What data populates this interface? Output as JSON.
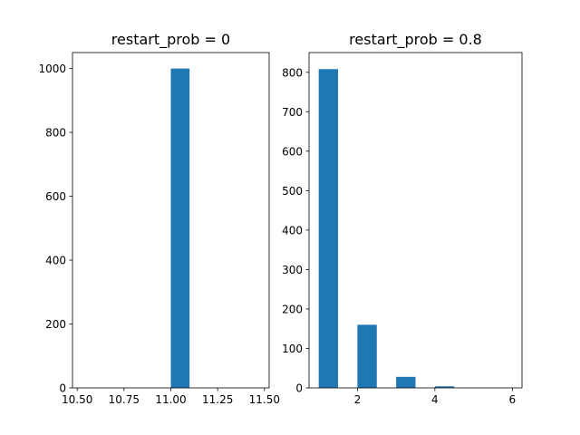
{
  "chart_data": [
    {
      "type": "bar",
      "title": "restart_prob = 0",
      "xlim": [
        10.475,
        11.525
      ],
      "ylim": [
        0,
        1050
      ],
      "xticks": [
        10.5,
        10.75,
        11.0,
        11.25,
        11.5
      ],
      "xtick_labels": [
        "10.50",
        "10.75",
        "11.00",
        "11.25",
        "11.50"
      ],
      "yticks": [
        0,
        200,
        400,
        600,
        800,
        1000
      ],
      "ytick_labels": [
        "0",
        "200",
        "400",
        "600",
        "800",
        "1000"
      ],
      "bars": [
        {
          "x0": 11.0,
          "x1": 11.1,
          "value": 1000
        }
      ],
      "color": "#1f77b4",
      "grid": false
    },
    {
      "type": "bar",
      "title": "restart_prob = 0.8",
      "xlim": [
        0.75,
        6.25
      ],
      "ylim": [
        0,
        850
      ],
      "xticks": [
        2,
        4,
        6
      ],
      "xtick_labels": [
        "2",
        "4",
        "6"
      ],
      "yticks": [
        0,
        100,
        200,
        300,
        400,
        500,
        600,
        700,
        800
      ],
      "ytick_labels": [
        "0",
        "100",
        "200",
        "300",
        "400",
        "500",
        "600",
        "700",
        "800"
      ],
      "bars": [
        {
          "x0": 1.0,
          "x1": 1.5,
          "value": 808
        },
        {
          "x0": 2.0,
          "x1": 2.5,
          "value": 160
        },
        {
          "x0": 3.0,
          "x1": 3.5,
          "value": 28
        },
        {
          "x0": 4.0,
          "x1": 4.5,
          "value": 4
        },
        {
          "x0": 5.0,
          "x1": 5.5,
          "value": 0
        },
        {
          "x0": 5.5,
          "x1": 6.0,
          "value": 0
        }
      ],
      "color": "#1f77b4",
      "grid": false
    }
  ]
}
